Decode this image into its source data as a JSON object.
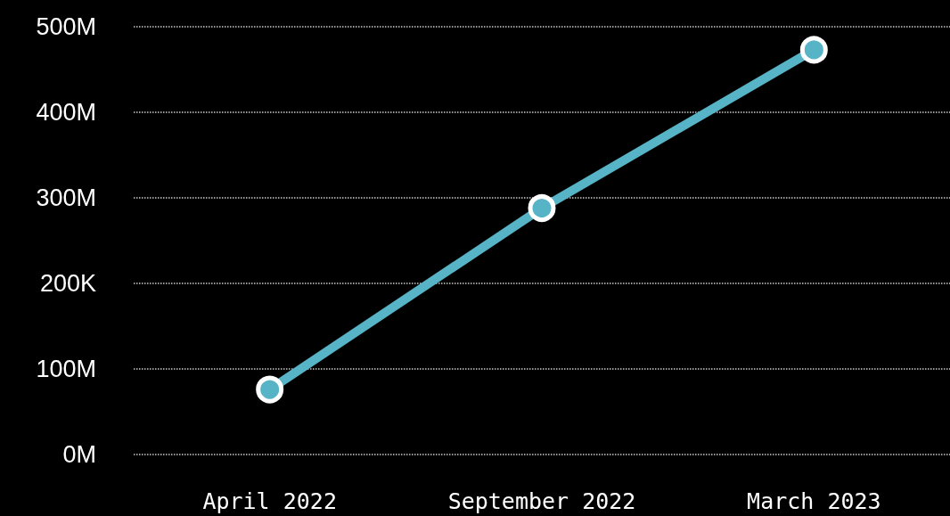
{
  "chart_data": {
    "type": "line",
    "categories": [
      "April 2022",
      "September 2022",
      "March 2023"
    ],
    "series": [
      {
        "color": "#57b3c6",
        "values": [
          76,
          288,
          473
        ]
      }
    ],
    "ylim": [
      0,
      500
    ],
    "yticks": [
      {
        "value": 0,
        "label": "0M"
      },
      {
        "value": 100,
        "label": "100M"
      },
      {
        "value": 200,
        "label": "200K"
      },
      {
        "value": 300,
        "label": "300M"
      },
      {
        "value": 400,
        "label": "400M"
      },
      {
        "value": 500,
        "label": "500M"
      }
    ],
    "grid": "y",
    "marker": "circle",
    "line_style": "solid"
  }
}
